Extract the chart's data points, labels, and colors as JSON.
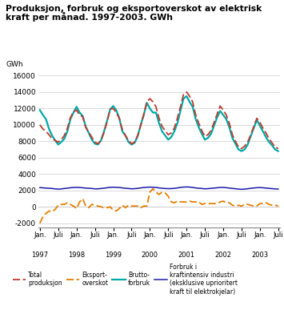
{
  "title_line1": "Produksjon, forbruk og eksportoverskot av elektrisk",
  "title_line2": "kraft per månad. 1997-2003. GWh",
  "ylabel": "GWh",
  "ylim": [
    -2500,
    16500
  ],
  "yticks": [
    -2000,
    0,
    2000,
    4000,
    6000,
    8000,
    10000,
    12000,
    14000,
    16000
  ],
  "bg_color": "#ffffff",
  "grid_color": "#cccccc",
  "line_colors": {
    "produksjon": "#c0392b",
    "eksport": "#e67e00",
    "brutto": "#00a8a8",
    "forbruk": "#1a1aaa"
  },
  "produksjon": [
    10000,
    9500,
    9200,
    8800,
    8300,
    8100,
    7900,
    8200,
    8700,
    9600,
    10900,
    11600,
    11800,
    11200,
    11000,
    9700,
    9100,
    8500,
    7900,
    7700,
    8100,
    9100,
    10400,
    11900,
    12000,
    11500,
    10800,
    9400,
    8700,
    8100,
    7700,
    7900,
    8700,
    9900,
    11300,
    12800,
    13200,
    12800,
    12200,
    10800,
    9800,
    9300,
    8800,
    9000,
    9600,
    10800,
    12200,
    13700,
    14000,
    13500,
    12800,
    11200,
    10200,
    9300,
    8600,
    8800,
    9300,
    10300,
    11300,
    12300,
    11800,
    11200,
    10200,
    8800,
    8000,
    7300,
    7100,
    7400,
    7900,
    8800,
    9800,
    10800,
    10300,
    9600,
    9000,
    8300,
    7800,
    7300,
    7100
  ],
  "brutto": [
    11800,
    11200,
    10700,
    9500,
    8700,
    8100,
    7600,
    7900,
    8300,
    9200,
    10700,
    11500,
    12200,
    11500,
    11100,
    9800,
    9000,
    8200,
    7700,
    7600,
    8100,
    9200,
    10500,
    11900,
    12300,
    11800,
    10800,
    9200,
    8700,
    7900,
    7600,
    7800,
    8600,
    10000,
    11200,
    12700,
    12000,
    11500,
    11500,
    10200,
    9200,
    8700,
    8200,
    8500,
    9200,
    10200,
    11700,
    13200,
    13500,
    12800,
    12200,
    10700,
    9700,
    8900,
    8200,
    8400,
    8900,
    9900,
    10900,
    11700,
    11200,
    10700,
    9700,
    8400,
    7700,
    7000,
    6800,
    7000,
    7600,
    8600,
    9600,
    10600,
    9900,
    9200,
    8500,
    7900,
    7500,
    7000,
    6800
  ],
  "eksport": [
    -2000,
    -1200,
    -800,
    -500,
    -600,
    -300,
    200,
    300,
    300,
    500,
    300,
    100,
    -200,
    600,
    1000,
    100,
    -100,
    300,
    200,
    100,
    0,
    -100,
    -100,
    0,
    -400,
    -500,
    -200,
    200,
    -100,
    200,
    100,
    100,
    100,
    -100,
    100,
    100,
    1800,
    2200,
    1800,
    1500,
    1800,
    1700,
    1300,
    600,
    500,
    700,
    600,
    600,
    600,
    700,
    600,
    600,
    600,
    300,
    400,
    400,
    400,
    400,
    400,
    600,
    700,
    500,
    500,
    200,
    100,
    200,
    100,
    300,
    300,
    200,
    100,
    100,
    400,
    400,
    500,
    300,
    200,
    200,
    100
  ],
  "forbruk": [
    2350,
    2320,
    2290,
    2270,
    2240,
    2200,
    2160,
    2190,
    2240,
    2280,
    2330,
    2360,
    2380,
    2360,
    2330,
    2290,
    2270,
    2240,
    2200,
    2200,
    2240,
    2280,
    2330,
    2380,
    2400,
    2380,
    2360,
    2310,
    2270,
    2240,
    2200,
    2220,
    2260,
    2310,
    2360,
    2390,
    2410,
    2390,
    2370,
    2310,
    2270,
    2240,
    2220,
    2230,
    2260,
    2310,
    2370,
    2410,
    2430,
    2410,
    2370,
    2310,
    2270,
    2240,
    2200,
    2220,
    2260,
    2290,
    2330,
    2370,
    2370,
    2340,
    2290,
    2250,
    2210,
    2170,
    2140,
    2170,
    2210,
    2260,
    2300,
    2340,
    2350,
    2330,
    2290,
    2260,
    2220,
    2190,
    2170
  ],
  "legend_labels": [
    "Total\nproduksjon",
    "Eksport-\noverskot",
    "Brutto-\nforbruk",
    "Forbruk i\nkraftintensiv industri\n(eksklusive uprioritert\nkraft til elektrokjelar)"
  ],
  "n_months": 79
}
